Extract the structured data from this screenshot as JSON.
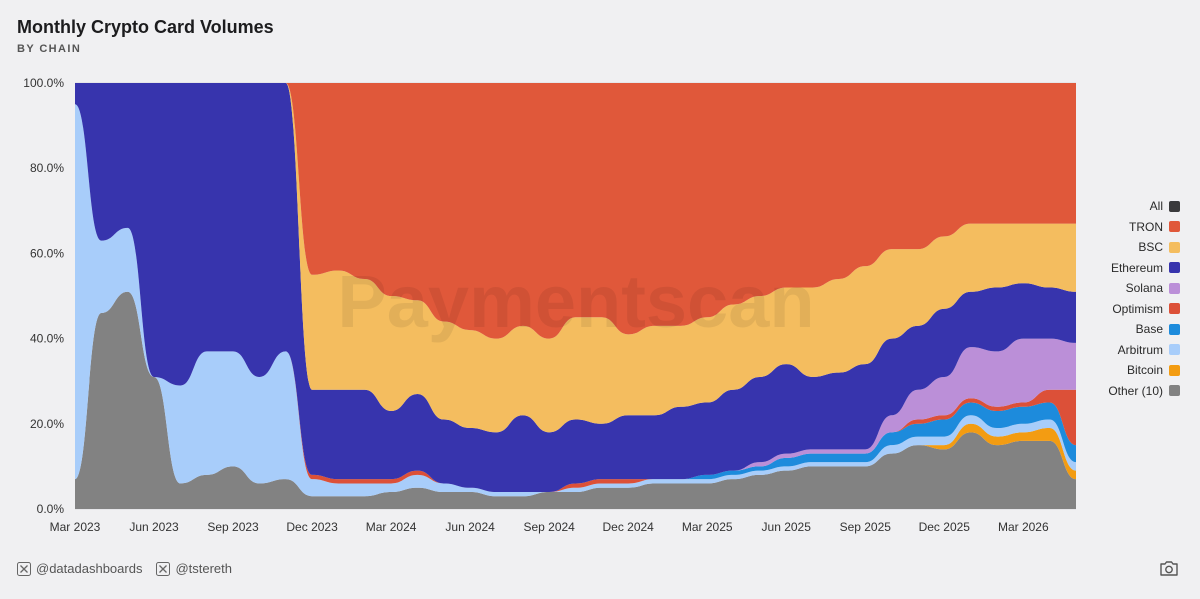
{
  "header": {
    "title": "Monthly Crypto Card Volumes",
    "subtitle": "BY CHAIN"
  },
  "watermark": "Paymentscan",
  "footer": {
    "handles": [
      {
        "icon": "x-logo-icon",
        "text": "@datadashboards"
      },
      {
        "icon": "x-logo-icon",
        "text": "@tstereth"
      }
    ],
    "camera_icon": "camera-icon"
  },
  "legend": [
    {
      "label": "All",
      "color": "#3a3a3c"
    },
    {
      "label": "TRON",
      "color": "#e0583a"
    },
    {
      "label": "BSC",
      "color": "#f4bd5f"
    },
    {
      "label": "Ethereum",
      "color": "#3734ad"
    },
    {
      "label": "Solana",
      "color": "#bb8fd8"
    },
    {
      "label": "Optimism",
      "color": "#dc5038"
    },
    {
      "label": "Base",
      "color": "#1d8bdc"
    },
    {
      "label": "Arbitrum",
      "color": "#a8cdfa"
    },
    {
      "label": "Bitcoin",
      "color": "#f39c12"
    },
    {
      "label": "Other (10)",
      "color": "#828282"
    }
  ],
  "chart_data": {
    "type": "area",
    "stacking": "percent",
    "title": "Monthly Crypto Card Volumes",
    "subtitle": "BY CHAIN",
    "y_ticks": [
      "0.0%",
      "20.0%",
      "40.0%",
      "60.0%",
      "80.0%",
      "100.0%"
    ],
    "ylim": [
      0,
      100
    ],
    "grid": true,
    "legend_position": "right",
    "x": [
      "2023-03",
      "2023-04",
      "2023-05",
      "2023-06",
      "2023-07",
      "2023-08",
      "2023-09",
      "2023-10",
      "2023-11",
      "2023-12",
      "2024-01",
      "2024-02",
      "2024-03",
      "2024-04",
      "2024-05",
      "2024-06",
      "2024-07",
      "2024-08",
      "2024-09",
      "2024-10",
      "2024-11",
      "2024-12",
      "2025-01",
      "2025-02",
      "2025-03",
      "2025-04",
      "2025-05",
      "2025-06",
      "2025-07",
      "2025-08",
      "2025-09",
      "2025-10",
      "2025-11",
      "2025-12",
      "2026-01",
      "2026-02",
      "2026-03",
      "2026-04",
      "2026-05"
    ],
    "x_tick_labels": [
      {
        "x": "2023-03",
        "label": "Mar 2023"
      },
      {
        "x": "2023-06",
        "label": "Jun 2023"
      },
      {
        "x": "2023-09",
        "label": "Sep 2023"
      },
      {
        "x": "2023-12",
        "label": "Dec 2023"
      },
      {
        "x": "2024-03",
        "label": "Mar 2024"
      },
      {
        "x": "2024-06",
        "label": "Jun 2024"
      },
      {
        "x": "2024-09",
        "label": "Sep 2024"
      },
      {
        "x": "2024-12",
        "label": "Dec 2024"
      },
      {
        "x": "2025-03",
        "label": "Mar 2025"
      },
      {
        "x": "2025-06",
        "label": "Jun 2025"
      },
      {
        "x": "2025-09",
        "label": "Sep 2025"
      },
      {
        "x": "2025-12",
        "label": "Dec 2025"
      },
      {
        "x": "2026-03",
        "label": "Mar 2026"
      }
    ],
    "series": [
      {
        "name": "Other (10)",
        "color": "#828282",
        "values": [
          7,
          46,
          51,
          31,
          6,
          8,
          10,
          6,
          7,
          3,
          3,
          3,
          4,
          5,
          4,
          4,
          3,
          3,
          4,
          4,
          5,
          5,
          6,
          6,
          6,
          7,
          8,
          9,
          10,
          10,
          10,
          13,
          15,
          14,
          18,
          15,
          16,
          16,
          7
        ]
      },
      {
        "name": "Bitcoin",
        "color": "#f39c12",
        "values": [
          0,
          0,
          0,
          0,
          0,
          0,
          0,
          0,
          0,
          0,
          0,
          0,
          0,
          0,
          0,
          0,
          0,
          0,
          0,
          0,
          0,
          0,
          0,
          0,
          0,
          0,
          0,
          0,
          0,
          0,
          0,
          0,
          0,
          1,
          2,
          2,
          2,
          3,
          2
        ]
      },
      {
        "name": "Arbitrum",
        "color": "#a8cdfa",
        "values": [
          88,
          17,
          15,
          0,
          23,
          29,
          27,
          25,
          30,
          4,
          3,
          3,
          2,
          3,
          2,
          1,
          1,
          1,
          0,
          1,
          1,
          1,
          1,
          1,
          1,
          1,
          1,
          1,
          1,
          1,
          1,
          2,
          2,
          2,
          2,
          2,
          2,
          2,
          2
        ]
      },
      {
        "name": "Base",
        "color": "#1d8bdc",
        "values": [
          0,
          0,
          0,
          0,
          0,
          0,
          0,
          0,
          0,
          0,
          0,
          0,
          0,
          0,
          0,
          0,
          0,
          0,
          0,
          0,
          0,
          0,
          0,
          0,
          1,
          1,
          1,
          2,
          2,
          2,
          2,
          3,
          3,
          4,
          3,
          4,
          4,
          4,
          4
        ]
      },
      {
        "name": "Optimism",
        "color": "#dc5038",
        "values": [
          0,
          0,
          0,
          0,
          0,
          0,
          0,
          0,
          0,
          1,
          1,
          1,
          1,
          1,
          0,
          0,
          0,
          0,
          0,
          1,
          1,
          1,
          0,
          0,
          0,
          0,
          0,
          0,
          0,
          0,
          0,
          0,
          1,
          1,
          1,
          1,
          1,
          3,
          13
        ]
      },
      {
        "name": "Solana",
        "color": "#bb8fd8",
        "values": [
          0,
          0,
          0,
          0,
          0,
          0,
          0,
          0,
          0,
          0,
          0,
          0,
          0,
          0,
          0,
          0,
          0,
          0,
          0,
          0,
          0,
          0,
          0,
          0,
          0,
          0,
          1,
          1,
          1,
          1,
          1,
          4,
          7,
          9,
          12,
          13,
          15,
          12,
          11
        ]
      },
      {
        "name": "Ethereum",
        "color": "#3734ad",
        "values": [
          5,
          37,
          34,
          69,
          71,
          63,
          63,
          69,
          63,
          20,
          21,
          21,
          16,
          18,
          15,
          14,
          14,
          18,
          14,
          15,
          13,
          15,
          15,
          17,
          17,
          19,
          20,
          21,
          17,
          18,
          20,
          18,
          15,
          16,
          13,
          15,
          13,
          12,
          12
        ]
      },
      {
        "name": "BSC",
        "color": "#f4bd5f",
        "values": [
          0,
          0,
          0,
          0,
          0,
          0,
          0,
          0,
          0,
          27,
          28,
          26,
          27,
          22,
          23,
          23,
          22,
          21,
          22,
          24,
          25,
          19,
          21,
          19,
          20,
          20,
          19,
          18,
          21,
          22,
          23,
          21,
          18,
          17,
          16,
          15,
          14,
          15,
          16
        ]
      },
      {
        "name": "TRON",
        "color": "#e0583a",
        "values": [
          0,
          0,
          0,
          0,
          0,
          0,
          0,
          0,
          0,
          45,
          44,
          46,
          50,
          51,
          56,
          58,
          60,
          57,
          60,
          55,
          55,
          59,
          57,
          57,
          55,
          52,
          50,
          48,
          48,
          46,
          43,
          39,
          39,
          36,
          33,
          33,
          33,
          33,
          33
        ]
      }
    ]
  }
}
